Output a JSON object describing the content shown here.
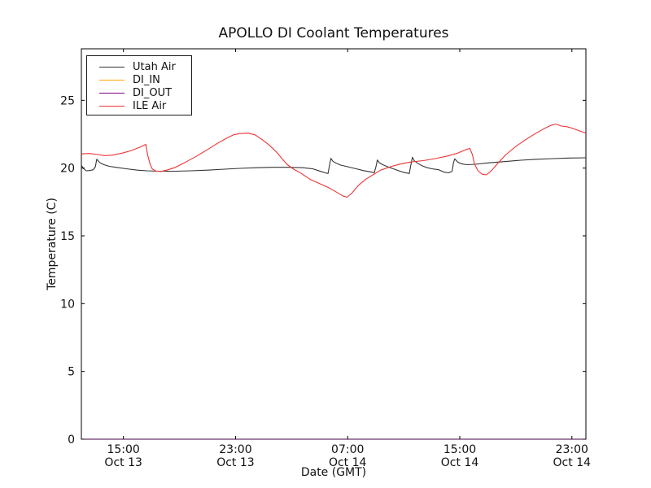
{
  "figure": {
    "background": "#ffffff"
  },
  "chart_data": {
    "type": "line",
    "title": "APOLLO DI Coolant Temperatures",
    "xlabel": "Date (GMT)",
    "ylabel": "Temperature (C)",
    "grid": false,
    "legend_position": "upper-left",
    "x_axis_note": "t = hours since 12:00 GMT Oct 13",
    "xlim": [
      0,
      36
    ],
    "ylim": [
      0,
      28.8
    ],
    "x_ticks": [
      {
        "t": 3,
        "time": "15:00",
        "date": "Oct 13"
      },
      {
        "t": 11,
        "time": "23:00",
        "date": "Oct 13"
      },
      {
        "t": 19,
        "time": "07:00",
        "date": "Oct 14"
      },
      {
        "t": 27,
        "time": "15:00",
        "date": "Oct 14"
      },
      {
        "t": 35,
        "time": "23:00",
        "date": "Oct 14"
      }
    ],
    "y_ticks": [
      {
        "v": 0,
        "label": "0"
      },
      {
        "v": 5,
        "label": "5"
      },
      {
        "v": 10,
        "label": "10"
      },
      {
        "v": 15,
        "label": "15"
      },
      {
        "v": 20,
        "label": "20"
      },
      {
        "v": 25,
        "label": "25"
      }
    ],
    "series": [
      {
        "name": "Utah Air",
        "color": "#333333",
        "points": [
          [
            0,
            20.2
          ],
          [
            0.17,
            19.95
          ],
          [
            0.35,
            19.8
          ],
          [
            0.6,
            19.82
          ],
          [
            0.85,
            19.88
          ],
          [
            1.0,
            20.1
          ],
          [
            1.1,
            20.65
          ],
          [
            1.3,
            20.42
          ],
          [
            1.6,
            20.25
          ],
          [
            2.0,
            20.13
          ],
          [
            2.5,
            20.05
          ],
          [
            3.2,
            19.95
          ],
          [
            4.0,
            19.85
          ],
          [
            4.7,
            19.8
          ],
          [
            5.5,
            19.77
          ],
          [
            6.7,
            19.77
          ],
          [
            7.8,
            19.8
          ],
          [
            9.0,
            19.85
          ],
          [
            10.2,
            19.92
          ],
          [
            11.3,
            19.98
          ],
          [
            12.5,
            20.03
          ],
          [
            13.6,
            20.06
          ],
          [
            14.8,
            20.06
          ],
          [
            15.8,
            20.03
          ],
          [
            16.5,
            19.95
          ],
          [
            17.0,
            19.78
          ],
          [
            17.4,
            19.65
          ],
          [
            17.6,
            19.6
          ],
          [
            17.72,
            20.3
          ],
          [
            17.8,
            20.72
          ],
          [
            17.95,
            20.5
          ],
          [
            18.2,
            20.35
          ],
          [
            18.5,
            20.22
          ],
          [
            19.0,
            20.1
          ],
          [
            19.6,
            19.95
          ],
          [
            20.1,
            19.82
          ],
          [
            20.6,
            19.73
          ],
          [
            20.9,
            19.66
          ],
          [
            21.02,
            20.1
          ],
          [
            21.12,
            20.6
          ],
          [
            21.25,
            20.4
          ],
          [
            21.5,
            20.25
          ],
          [
            21.85,
            20.1
          ],
          [
            22.25,
            19.95
          ],
          [
            22.65,
            19.8
          ],
          [
            23.05,
            19.67
          ],
          [
            23.4,
            19.6
          ],
          [
            23.52,
            20.3
          ],
          [
            23.62,
            20.8
          ],
          [
            23.75,
            20.55
          ],
          [
            24.0,
            20.35
          ],
          [
            24.3,
            20.18
          ],
          [
            24.6,
            20.05
          ],
          [
            25.0,
            19.95
          ],
          [
            25.5,
            19.88
          ],
          [
            25.9,
            19.7
          ],
          [
            26.2,
            19.65
          ],
          [
            26.45,
            19.75
          ],
          [
            26.55,
            20.4
          ],
          [
            26.64,
            20.68
          ],
          [
            26.85,
            20.45
          ],
          [
            27.1,
            20.32
          ],
          [
            27.5,
            20.25
          ],
          [
            28.1,
            20.28
          ],
          [
            29.0,
            20.38
          ],
          [
            30.2,
            20.48
          ],
          [
            31.35,
            20.58
          ],
          [
            32.5,
            20.65
          ],
          [
            33.7,
            20.7
          ],
          [
            34.8,
            20.74
          ],
          [
            36,
            20.76
          ]
        ]
      },
      {
        "name": "DI_IN",
        "color": "#ffa500",
        "points": [
          [
            0,
            0
          ],
          [
            36,
            0
          ]
        ]
      },
      {
        "name": "DI_OUT",
        "color": "#800080",
        "points": [
          [
            0,
            0
          ],
          [
            36,
            0
          ]
        ]
      },
      {
        "name": "ILE Air",
        "color": "#ee3333",
        "points": [
          [
            0,
            21.05
          ],
          [
            0.6,
            21.08
          ],
          [
            1.15,
            21.0
          ],
          [
            1.65,
            20.92
          ],
          [
            2.2,
            20.95
          ],
          [
            2.9,
            21.1
          ],
          [
            3.6,
            21.3
          ],
          [
            4.2,
            21.55
          ],
          [
            4.6,
            21.75
          ],
          [
            4.72,
            21.0
          ],
          [
            4.9,
            20.3
          ],
          [
            5.05,
            19.95
          ],
          [
            5.3,
            19.78
          ],
          [
            5.65,
            19.75
          ],
          [
            6.1,
            19.85
          ],
          [
            6.7,
            20.05
          ],
          [
            7.45,
            20.45
          ],
          [
            8.25,
            20.9
          ],
          [
            9.05,
            21.4
          ],
          [
            9.75,
            21.85
          ],
          [
            10.35,
            22.2
          ],
          [
            10.85,
            22.45
          ],
          [
            11.3,
            22.55
          ],
          [
            11.9,
            22.58
          ],
          [
            12.4,
            22.45
          ],
          [
            12.9,
            22.1
          ],
          [
            13.4,
            21.7
          ],
          [
            13.95,
            21.15
          ],
          [
            14.35,
            20.65
          ],
          [
            14.7,
            20.25
          ],
          [
            15.1,
            19.95
          ],
          [
            15.7,
            19.6
          ],
          [
            16.35,
            19.15
          ],
          [
            17.0,
            18.85
          ],
          [
            17.65,
            18.55
          ],
          [
            18.25,
            18.2
          ],
          [
            18.65,
            17.95
          ],
          [
            18.95,
            17.85
          ],
          [
            19.3,
            18.15
          ],
          [
            19.75,
            18.7
          ],
          [
            20.25,
            19.15
          ],
          [
            20.8,
            19.5
          ],
          [
            21.35,
            19.85
          ],
          [
            22.05,
            20.1
          ],
          [
            22.75,
            20.3
          ],
          [
            23.5,
            20.45
          ],
          [
            24.4,
            20.55
          ],
          [
            25.25,
            20.7
          ],
          [
            26.15,
            20.9
          ],
          [
            26.85,
            21.1
          ],
          [
            27.4,
            21.35
          ],
          [
            27.72,
            21.45
          ],
          [
            27.9,
            21.0
          ],
          [
            28.05,
            20.3
          ],
          [
            28.3,
            19.8
          ],
          [
            28.6,
            19.55
          ],
          [
            28.9,
            19.5
          ],
          [
            29.3,
            19.85
          ],
          [
            29.75,
            20.4
          ],
          [
            30.3,
            21.0
          ],
          [
            31.0,
            21.6
          ],
          [
            31.7,
            22.1
          ],
          [
            32.4,
            22.55
          ],
          [
            33.0,
            22.9
          ],
          [
            33.5,
            23.15
          ],
          [
            33.85,
            23.25
          ],
          [
            34.25,
            23.1
          ],
          [
            34.65,
            23.05
          ],
          [
            35.0,
            22.95
          ],
          [
            35.4,
            22.8
          ],
          [
            35.8,
            22.65
          ],
          [
            36,
            22.6
          ]
        ]
      }
    ]
  }
}
